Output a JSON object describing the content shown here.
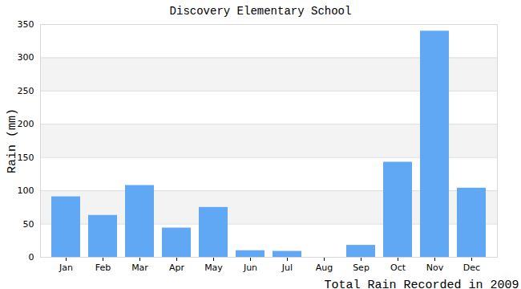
{
  "chart_data": {
    "type": "bar",
    "title": "Discovery Elementary School",
    "x_label": "Total Rain Recorded in 2009",
    "y_label": "Rain (mm)",
    "categories": [
      "Jan",
      "Feb",
      "Mar",
      "Apr",
      "May",
      "Jun",
      "Jul",
      "Aug",
      "Sep",
      "Oct",
      "Nov",
      "Dec"
    ],
    "values": [
      91,
      63,
      108,
      44,
      75,
      10,
      9,
      0,
      18,
      143,
      340,
      104
    ],
    "color": "#60a8f4",
    "ylim": [
      0,
      350
    ],
    "yticks": [
      0,
      50,
      100,
      150,
      200,
      250,
      300,
      350
    ],
    "grid": true
  }
}
